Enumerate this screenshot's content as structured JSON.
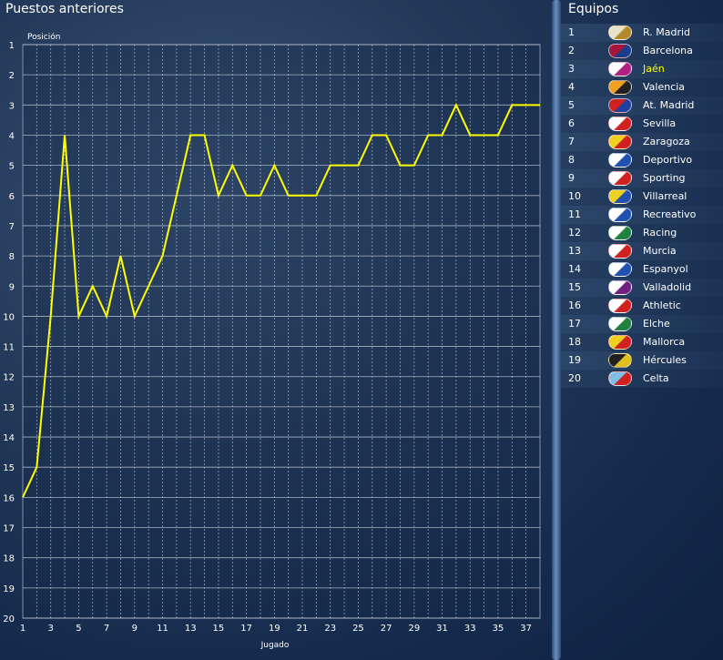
{
  "left_title": "Puestos anteriores",
  "right_title": "Equipos",
  "chart_data": {
    "type": "line",
    "title": "",
    "ylabel": "Posición",
    "xlabel": "Jugado",
    "x_ticks": [
      1,
      3,
      5,
      7,
      9,
      11,
      13,
      15,
      17,
      19,
      21,
      23,
      25,
      27,
      29,
      31,
      33,
      35,
      37
    ],
    "y_ticks": [
      1,
      2,
      3,
      4,
      5,
      6,
      7,
      8,
      9,
      10,
      11,
      12,
      13,
      14,
      15,
      16,
      17,
      18,
      19,
      20
    ],
    "xlim": [
      1,
      38
    ],
    "ylim": [
      1,
      20
    ],
    "y_inverted": true,
    "series": [
      {
        "color": "#ffff00",
        "x": [
          1,
          2,
          3,
          4,
          5,
          6,
          7,
          8,
          9,
          10,
          11,
          12,
          13,
          14,
          15,
          16,
          17,
          18,
          19,
          20,
          21,
          22,
          23,
          24,
          25,
          26,
          27,
          28,
          29,
          30,
          31,
          32,
          33,
          34,
          35,
          36,
          37,
          38
        ],
        "y": [
          16,
          15,
          10,
          4,
          10,
          9,
          10,
          8,
          10,
          9,
          8,
          6,
          4,
          4,
          6,
          5,
          6,
          6,
          5,
          6,
          6,
          6,
          5,
          5,
          5,
          4,
          4,
          5,
          5,
          4,
          4,
          3,
          4,
          4,
          4,
          3,
          3,
          3
        ]
      }
    ]
  },
  "teams": [
    {
      "pos": "1",
      "name": "R. Madrid",
      "c1": "#e8e2c8",
      "c2": "#b08a2a"
    },
    {
      "pos": "2",
      "name": "Barcelona",
      "c1": "#a4163a",
      "c2": "#1c3c8c"
    },
    {
      "pos": "3",
      "name": "Jaén",
      "c1": "#ffffff",
      "c2": "#b02080",
      "highlight": true
    },
    {
      "pos": "4",
      "name": "Valencia",
      "c1": "#f0a020",
      "c2": "#202020"
    },
    {
      "pos": "5",
      "name": "At. Madrid",
      "c1": "#d02020",
      "c2": "#2040a0"
    },
    {
      "pos": "6",
      "name": "Sevilla",
      "c1": "#ffffff",
      "c2": "#d02020"
    },
    {
      "pos": "7",
      "name": "Zaragoza",
      "c1": "#f0d020",
      "c2": "#d02020"
    },
    {
      "pos": "8",
      "name": "Deportivo",
      "c1": "#ffffff",
      "c2": "#2050b0"
    },
    {
      "pos": "9",
      "name": "Sporting",
      "c1": "#ffffff",
      "c2": "#d02020"
    },
    {
      "pos": "10",
      "name": "Villarreal",
      "c1": "#f0d020",
      "c2": "#2050b0"
    },
    {
      "pos": "11",
      "name": "Recreativo",
      "c1": "#ffffff",
      "c2": "#2050b0"
    },
    {
      "pos": "12",
      "name": "Racing",
      "c1": "#ffffff",
      "c2": "#208040"
    },
    {
      "pos": "13",
      "name": "Murcia",
      "c1": "#ffffff",
      "c2": "#d02020"
    },
    {
      "pos": "14",
      "name": "Espanyol",
      "c1": "#ffffff",
      "c2": "#2050b0"
    },
    {
      "pos": "15",
      "name": "Valladolid",
      "c1": "#ffffff",
      "c2": "#702080"
    },
    {
      "pos": "16",
      "name": "Athletic",
      "c1": "#ffffff",
      "c2": "#d02020"
    },
    {
      "pos": "17",
      "name": "Elche",
      "c1": "#ffffff",
      "c2": "#208040"
    },
    {
      "pos": "18",
      "name": "Mallorca",
      "c1": "#f0d020",
      "c2": "#d02020"
    },
    {
      "pos": "19",
      "name": "Hércules",
      "c1": "#202020",
      "c2": "#e0c020"
    },
    {
      "pos": "20",
      "name": "Celta",
      "c1": "#80c0e8",
      "c2": "#d02020"
    }
  ]
}
